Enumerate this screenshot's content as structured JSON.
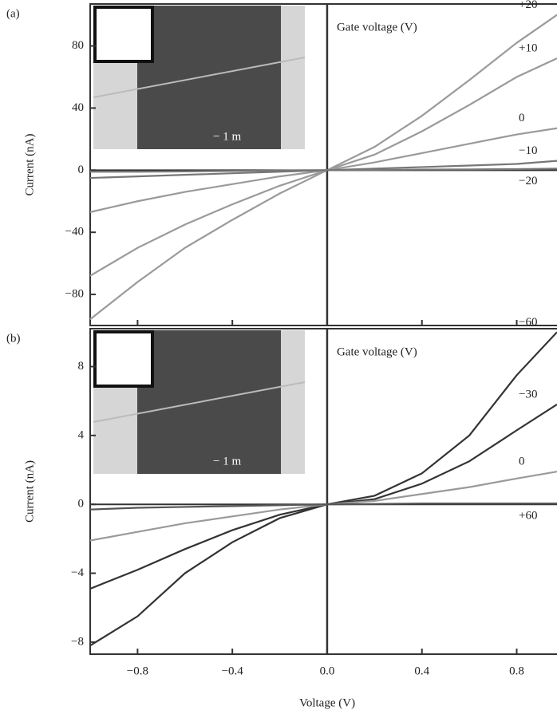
{
  "chart_data": [
    {
      "type": "line",
      "panel_label": "(a)",
      "y_label": "Current (nA)",
      "annotation": "Gate voltage (V)",
      "inset_label": "− 1   m",
      "x": [
        -1,
        -0.8,
        -0.6,
        -0.4,
        -0.2,
        0,
        0.2,
        0.4,
        0.6,
        0.8,
        0.97
      ],
      "xlim": [
        -1,
        0.97
      ],
      "xticks": [
        {
          "value": -0.8,
          "label": "−0.8"
        },
        {
          "value": -0.4,
          "label": "−0.4"
        },
        {
          "value": 0,
          "label": "0.0"
        },
        {
          "value": 0.4,
          "label": "0.4"
        },
        {
          "value": 0.8,
          "label": "0.8"
        }
      ],
      "ylim": [
        -100,
        107
      ],
      "yticks": [
        {
          "value": 80,
          "label": "80"
        },
        {
          "value": 40,
          "label": "40"
        },
        0,
        {
          "value": -40,
          "label": "−40"
        },
        {
          "value": -80,
          "label": "−80"
        }
      ],
      "series": [
        {
          "name": "+20",
          "color": "#9a9a9a",
          "values": [
            -96,
            -72,
            -50,
            -32,
            -15,
            0,
            15,
            35,
            58,
            82,
            100
          ]
        },
        {
          "name": "+10",
          "color": "#9a9a9a",
          "values": [
            -68,
            -50,
            -35,
            -22,
            -10,
            0,
            10,
            25,
            42,
            60,
            72
          ]
        },
        {
          "name": "0",
          "color": "#9a9a9a",
          "values": [
            -27,
            -20,
            -14,
            -9,
            -4,
            0,
            5,
            11,
            17,
            23,
            27
          ]
        },
        {
          "name": "−10",
          "color": "#777777",
          "values": [
            -5,
            -4,
            -3,
            -2,
            -1,
            0,
            1,
            2,
            3,
            4,
            6
          ]
        },
        {
          "name": "−20",
          "color": "#777777",
          "values": [
            -1,
            -1,
            -0.8,
            -0.5,
            -0.2,
            0,
            0.2,
            0.4,
            0.5,
            0.7,
            1
          ]
        }
      ]
    },
    {
      "type": "line",
      "panel_label": "(b)",
      "y_label": "Current (nA)",
      "x_label": "Voltage (V)",
      "annotation": "Gate voltage (V)",
      "inset_label": "− 1   m",
      "x": [
        -1,
        -0.8,
        -0.6,
        -0.4,
        -0.2,
        0,
        0.2,
        0.4,
        0.6,
        0.8,
        0.97
      ],
      "xlim": [
        -1,
        0.97
      ],
      "xticks": [
        {
          "value": -0.8,
          "label": "−0.8"
        },
        {
          "value": -0.4,
          "label": "−0.4"
        },
        {
          "value": 0,
          "label": "0.0"
        },
        {
          "value": 0.4,
          "label": "0.4"
        },
        {
          "value": 0.8,
          "label": "0.8"
        }
      ],
      "ylim": [
        -8.7,
        10.2
      ],
      "yticks": [
        8,
        4,
        0,
        {
          "value": -4,
          "label": "−4"
        },
        {
          "value": -8,
          "label": "−8"
        }
      ],
      "series": [
        {
          "name": "−60",
          "color": "#333333",
          "values": [
            -8.2,
            -6.5,
            -4,
            -2.2,
            -0.8,
            0,
            0.5,
            1.8,
            4,
            7.5,
            10
          ]
        },
        {
          "name": "−30",
          "color": "#333333",
          "values": [
            -4.9,
            -3.8,
            -2.6,
            -1.5,
            -0.6,
            0,
            0.3,
            1.2,
            2.5,
            4.3,
            5.8
          ]
        },
        {
          "name": "0",
          "color": "#9a9a9a",
          "values": [
            -2.1,
            -1.6,
            -1.1,
            -0.7,
            -0.3,
            0,
            0.2,
            0.6,
            1.0,
            1.5,
            1.9
          ]
        },
        {
          "name": "+60",
          "color": "#555555",
          "values": [
            -0.3,
            -0.2,
            -0.15,
            -0.1,
            -0.05,
            0,
            0.02,
            0.05,
            0.05,
            0.05,
            0.05
          ]
        }
      ]
    }
  ]
}
